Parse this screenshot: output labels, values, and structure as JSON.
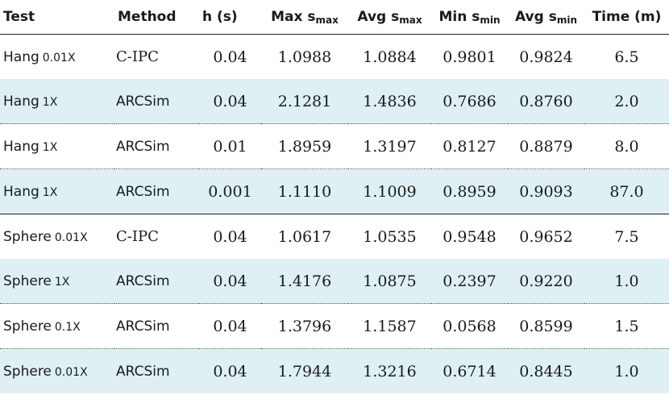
{
  "headers": [
    {
      "main": "Test",
      "sub": ""
    },
    {
      "main": "Method",
      "sub": ""
    },
    {
      "main": "h (s)",
      "sub": ""
    },
    {
      "main": "Max s",
      "sub": "max"
    },
    {
      "main": "Avg s",
      "sub": "max"
    },
    {
      "main": "Min s",
      "sub": "min"
    },
    {
      "main": "Avg s",
      "sub": "min"
    },
    {
      "main": "Time (m)",
      "sub": ""
    }
  ],
  "rows": [
    {
      "test": "Hang",
      "scale": "0.01X",
      "method": "C-IPC",
      "h": "0.04",
      "max_smax": "1.0988",
      "avg_smax": "1.0884",
      "min_smin": "0.9801",
      "avg_smin": "0.9824",
      "time": "6.5"
    },
    {
      "test": "Hang",
      "scale": "1X",
      "method": "ARCSim",
      "h": "0.04",
      "max_smax": "2.1281",
      "avg_smax": "1.4836",
      "min_smin": "0.7686",
      "avg_smin": "0.8760",
      "time": "2.0"
    },
    {
      "test": "Hang",
      "scale": "1X",
      "method": "ARCSim",
      "h": "0.01",
      "max_smax": "1.8959",
      "avg_smax": "1.3197",
      "min_smin": "0.8127",
      "avg_smin": "0.8879",
      "time": "8.0"
    },
    {
      "test": "Hang",
      "scale": "1X",
      "method": "ARCSim",
      "h": "0.001",
      "max_smax": "1.1110",
      "avg_smax": "1.1009",
      "min_smin": "0.8959",
      "avg_smin": "0.9093",
      "time": "87.0"
    },
    {
      "test": "Sphere",
      "scale": "0.01X",
      "method": "C-IPC",
      "h": "0.04",
      "max_smax": "1.0617",
      "avg_smax": "1.0535",
      "min_smin": "0.9548",
      "avg_smin": "0.9652",
      "time": "7.5"
    },
    {
      "test": "Sphere",
      "scale": "1X",
      "method": "ARCSim",
      "h": "0.04",
      "max_smax": "1.4176",
      "avg_smax": "1.0875",
      "min_smin": "0.2397",
      "avg_smin": "0.9220",
      "time": "1.0"
    },
    {
      "test": "Sphere",
      "scale": "0.1X",
      "method": "ARCSim",
      "h": "0.04",
      "max_smax": "1.3796",
      "avg_smax": "1.1587",
      "min_smin": "0.0568",
      "avg_smin": "0.8599",
      "time": "1.5"
    },
    {
      "test": "Sphere",
      "scale": "0.01X",
      "method": "ARCSim",
      "h": "0.04",
      "max_smax": "1.7944",
      "avg_smax": "1.3216",
      "min_smin": "0.6714",
      "avg_smin": "0.8445",
      "time": "1.0"
    }
  ],
  "colors": {
    "row_shade": "#dff0f5",
    "rule": "#222222"
  }
}
